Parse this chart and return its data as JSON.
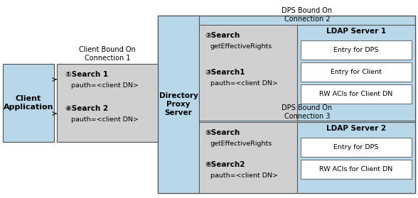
{
  "fig_width": 5.88,
  "fig_height": 2.79,
  "dpi": 100,
  "bg_color": "#ffffff",
  "light_blue": "#b8d8ea",
  "light_gray": "#d0d0d0",
  "white": "#ffffff",
  "border_color": "#505050",
  "title1": "DPS Bound On\nConnection 2",
  "title2": "DPS Bound On\nConnection 3",
  "title3": "Client Bound On\nConnection 1",
  "client_label": "Client\nApplication",
  "dps_label": "Directory\nProxy\nServer",
  "ldap1_label": "LDAP Server 1",
  "ldap2_label": "LDAP Server 2",
  "entries_ldap1": [
    "Entry for DPS",
    "Entry for Client",
    "RW ACIs for Client DN"
  ],
  "entries_ldap2": [
    "Entry for DPS",
    "RW ACIs for Client DN"
  ],
  "search1_label": "①Search 1",
  "search1_sub": "pauth=<client DN>",
  "search2_label": "④Search 2",
  "search2_sub": "pauth=<client DN>",
  "search_conn2_1": "②Search",
  "search_conn2_1_sub": "getEffectiveRights",
  "search_conn2_2": "③Search1",
  "search_conn2_2_sub": "pauth=<client DN>",
  "search_conn3_1": "⑤Search",
  "search_conn3_1_sub": "getEffectiveRights",
  "search_conn3_2": "⑥Search2",
  "search_conn3_2_sub": "pauth=<client DN>"
}
